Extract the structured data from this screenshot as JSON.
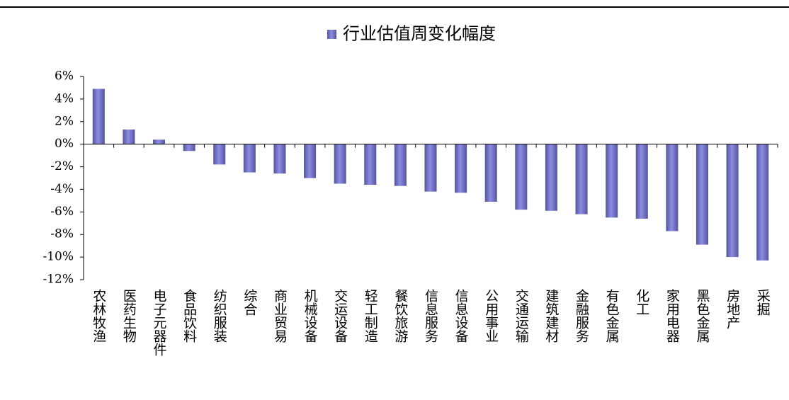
{
  "chart_data": {
    "type": "bar",
    "categories": [
      "农林牧渔",
      "医药生物",
      "电子元器件",
      "食品饮料",
      "纺织服装",
      "综合",
      "商业贸易",
      "机械设备",
      "交运设备",
      "轻工制造",
      "餐饮旅游",
      "信息服务",
      "信息设备",
      "公用事业",
      "交通运输",
      "建筑建材",
      "金融服务",
      "有色金属",
      "化工",
      "家用电器",
      "黑色金属",
      "房地产",
      "采掘"
    ],
    "series": [
      {
        "name": "行业估值周变化幅度",
        "color": "#8c8ce6",
        "values": [
          4.9,
          1.3,
          0.4,
          -0.6,
          -1.8,
          -2.5,
          -2.6,
          -3.0,
          -3.5,
          -3.6,
          -3.7,
          -4.2,
          -4.3,
          -5.1,
          -5.8,
          -5.9,
          -6.2,
          -6.5,
          -6.6,
          -7.7,
          -8.9,
          -10.0,
          -10.3
        ]
      }
    ],
    "ylim": [
      -12,
      6
    ],
    "yticks": [
      {
        "value": -12,
        "label": "-12%"
      },
      {
        "value": -10,
        "label": "-10%"
      },
      {
        "value": -8,
        "label": "-8%"
      },
      {
        "value": -6,
        "label": "-6%"
      },
      {
        "value": -4,
        "label": "-4%"
      },
      {
        "value": -2,
        "label": "-2%"
      },
      {
        "value": 0,
        "label": "0%"
      },
      {
        "value": 2,
        "label": "2%"
      },
      {
        "value": 4,
        "label": "4%"
      },
      {
        "value": 6,
        "label": "6%"
      }
    ],
    "grid": false,
    "legend": "top"
  }
}
